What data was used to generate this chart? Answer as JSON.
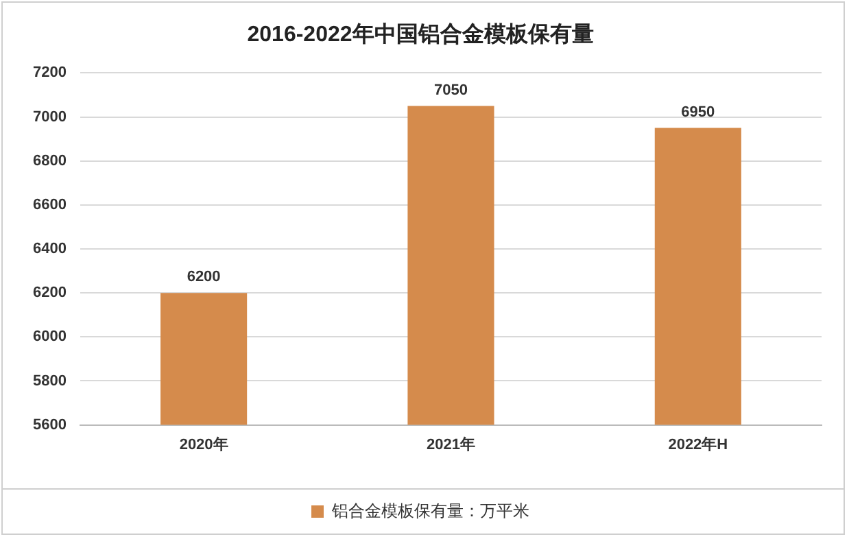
{
  "chart_data": {
    "type": "bar",
    "title": "2016-2022年中国铝合金模板保有量",
    "categories": [
      "2020年",
      "2021年",
      "2022年H"
    ],
    "series": [
      {
        "name": "铝合金模板保有量：万平米",
        "color": "#d58b4c",
        "values": [
          6200,
          7050,
          6950
        ]
      }
    ],
    "ylim": [
      5600,
      7200
    ],
    "yticks": [
      5600,
      5800,
      6000,
      6200,
      6400,
      6600,
      6800,
      7000,
      7200
    ],
    "grid": "y",
    "legend": "bottom",
    "data_labels": true
  }
}
